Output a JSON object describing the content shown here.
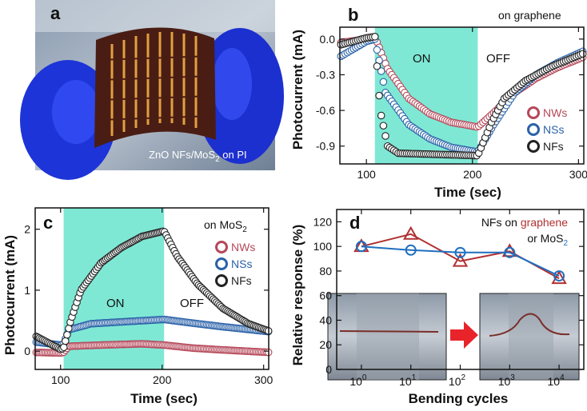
{
  "colors": {
    "NWs": "#b5485a",
    "NSs": "#2b62a8",
    "NFs": "#222222",
    "on_region": "#7fe8d5",
    "graphene": "#b03030",
    "MoS2": "#1f6fc0",
    "arrow": "#e8242a"
  },
  "photo": {
    "panel_label": "a",
    "caption_parts": [
      "ZnO NFs/MoS",
      "2",
      " on PI"
    ]
  },
  "chart_data": [
    {
      "panel": "b",
      "type": "line",
      "note": "on graphene",
      "xlabel": "Time (sec)",
      "ylabel": "Photocurrent (mA)",
      "xlim": [
        75,
        305
      ],
      "ylim": [
        -1.05,
        0.1
      ],
      "xticks": [
        100,
        200,
        300
      ],
      "xtick_labels": [
        "100",
        "200",
        "300"
      ],
      "yticks": [
        0.0,
        -0.3,
        -0.6,
        -0.9
      ],
      "ytick_labels": [
        "0.0",
        "-0.3",
        "-0.6",
        "-0.9"
      ],
      "on_region": [
        108,
        205
      ],
      "on_label": "ON",
      "off_label": "OFF",
      "series": [
        {
          "name": "NWs",
          "points": [
            [
              75,
              -0.03
            ],
            [
              100,
              0.0
            ],
            [
              108,
              0.02
            ],
            [
              120,
              -0.25
            ],
            [
              140,
              -0.5
            ],
            [
              160,
              -0.63
            ],
            [
              180,
              -0.7
            ],
            [
              205,
              -0.74
            ],
            [
              220,
              -0.62
            ],
            [
              240,
              -0.45
            ],
            [
              260,
              -0.33
            ],
            [
              280,
              -0.24
            ],
            [
              305,
              -0.15
            ]
          ]
        },
        {
          "name": "NSs",
          "points": [
            [
              75,
              -0.15
            ],
            [
              100,
              -0.02
            ],
            [
              108,
              0.0
            ],
            [
              118,
              -0.45
            ],
            [
              140,
              -0.72
            ],
            [
              160,
              -0.84
            ],
            [
              180,
              -0.91
            ],
            [
              205,
              -0.95
            ],
            [
              220,
              -0.72
            ],
            [
              240,
              -0.45
            ],
            [
              260,
              -0.3
            ],
            [
              280,
              -0.2
            ],
            [
              305,
              -0.1
            ]
          ]
        },
        {
          "name": "NFs",
          "points": [
            [
              75,
              -0.05
            ],
            [
              100,
              0.01
            ],
            [
              108,
              0.02
            ],
            [
              113,
              -0.6
            ],
            [
              120,
              -0.9
            ],
            [
              130,
              -0.96
            ],
            [
              205,
              -0.98
            ],
            [
              218,
              -0.7
            ],
            [
              230,
              -0.5
            ],
            [
              250,
              -0.35
            ],
            [
              275,
              -0.23
            ],
            [
              305,
              -0.12
            ]
          ]
        }
      ]
    },
    {
      "panel": "c",
      "type": "line",
      "note_parts": [
        "on MoS",
        "2"
      ],
      "xlabel": "Time (sec)",
      "ylabel": "Photocurrent (mA)",
      "xlim": [
        75,
        305
      ],
      "ylim": [
        -0.3,
        2.35
      ],
      "xticks": [
        100,
        200,
        300
      ],
      "xtick_labels": [
        "100",
        "200",
        "300"
      ],
      "yticks": [
        0,
        1,
        2
      ],
      "ytick_labels": [
        "0",
        "1",
        "2"
      ],
      "on_region": [
        103,
        202
      ],
      "on_label": "ON",
      "off_label": "OFF",
      "series": [
        {
          "name": "NWs",
          "points": [
            [
              75,
              -0.02
            ],
            [
              100,
              -0.03
            ],
            [
              103,
              -0.02
            ],
            [
              108,
              0.08
            ],
            [
              140,
              0.1
            ],
            [
              180,
              0.12
            ],
            [
              202,
              0.1
            ],
            [
              230,
              0.05
            ],
            [
              260,
              0.02
            ],
            [
              305,
              -0.02
            ]
          ]
        },
        {
          "name": "NSs",
          "points": [
            [
              75,
              0.15
            ],
            [
              100,
              0.1
            ],
            [
              103,
              0.12
            ],
            [
              108,
              0.35
            ],
            [
              130,
              0.45
            ],
            [
              160,
              0.48
            ],
            [
              202,
              0.52
            ],
            [
              230,
              0.46
            ],
            [
              260,
              0.4
            ],
            [
              305,
              0.32
            ]
          ]
        },
        {
          "name": "NFs",
          "points": [
            [
              75,
              0.25
            ],
            [
              100,
              0.03
            ],
            [
              103,
              0.05
            ],
            [
              110,
              0.5
            ],
            [
              120,
              1.0
            ],
            [
              140,
              1.45
            ],
            [
              160,
              1.7
            ],
            [
              180,
              1.88
            ],
            [
              202,
              1.97
            ],
            [
              215,
              1.55
            ],
            [
              235,
              1.1
            ],
            [
              260,
              0.7
            ],
            [
              285,
              0.45
            ],
            [
              305,
              0.33
            ]
          ]
        }
      ]
    },
    {
      "panel": "d",
      "type": "line",
      "note_parts": [
        {
          "text": "NFs on ",
          "color": "#111"
        },
        {
          "text": "graphene",
          "color": "graphene"
        },
        {
          "text": "or MoS",
          "color": "#111"
        },
        {
          "text": "2",
          "color": "MoS2",
          "sub": true
        }
      ],
      "xlabel": "Bending cycles",
      "ylabel": "Relative response (%)",
      "xscale": "log",
      "xlim_exp": [
        -0.5,
        4.5
      ],
      "ylim": [
        0,
        130
      ],
      "xtick_exps": [
        0,
        1,
        2,
        3,
        4
      ],
      "xtick_base": "10",
      "yticks": [
        0,
        20,
        40,
        60,
        80,
        100,
        120
      ],
      "ytick_labels": [
        "0",
        "20",
        "40",
        "60",
        "80",
        "100",
        "120"
      ],
      "series": [
        {
          "name": "graphene",
          "marker": "triangle",
          "cycles_exp": [
            0,
            1,
            2,
            3,
            4
          ],
          "values": [
            100,
            110,
            88,
            96,
            74
          ]
        },
        {
          "name": "MoS2",
          "marker": "circle",
          "cycles_exp": [
            0,
            1,
            2,
            3,
            4
          ],
          "values": [
            100,
            97,
            95,
            95,
            76
          ]
        }
      ]
    }
  ]
}
